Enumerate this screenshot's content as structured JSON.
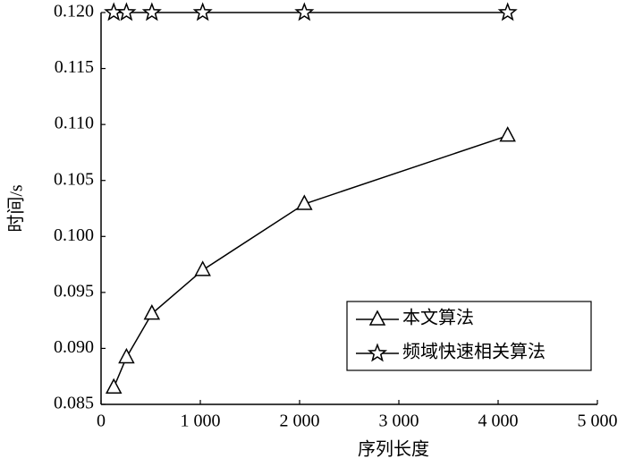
{
  "chart_data": {
    "type": "line",
    "x_label": "序列长度",
    "y_label": "时间/s",
    "x": [
      128,
      256,
      512,
      1024,
      2048,
      4096
    ],
    "series": [
      {
        "name": "本文算法",
        "color": "#000000",
        "marker": "triangle",
        "values": [
          0.0865,
          0.0892,
          0.0931,
          0.097,
          0.1029,
          0.109
        ]
      },
      {
        "name": "频域快速相关算法",
        "color": "#000000",
        "marker": "star",
        "values": [
          0.12,
          0.12,
          0.12,
          0.12,
          0.12,
          0.12
        ]
      }
    ],
    "xlim": [
      0,
      5000
    ],
    "xticks": [
      0,
      {
        "value": 1000,
        "label": "1 000"
      },
      {
        "value": 2000,
        "label": "2 000"
      },
      {
        "value": 3000,
        "label": "3 000"
      },
      {
        "value": 4000,
        "label": "4 000"
      },
      {
        "value": 5000,
        "label": "5 000"
      }
    ],
    "ylim": [
      0.085,
      0.12
    ],
    "yticks": [
      0.085,
      {
        "value": 0.09,
        "label": "0.090"
      },
      0.095,
      {
        "value": 0.1,
        "label": "0.100"
      },
      0.105,
      {
        "value": 0.11,
        "label": "0.110"
      },
      0.115,
      {
        "value": 0.12,
        "label": "0.120"
      }
    ],
    "legend": "lower right",
    "grid": false
  }
}
